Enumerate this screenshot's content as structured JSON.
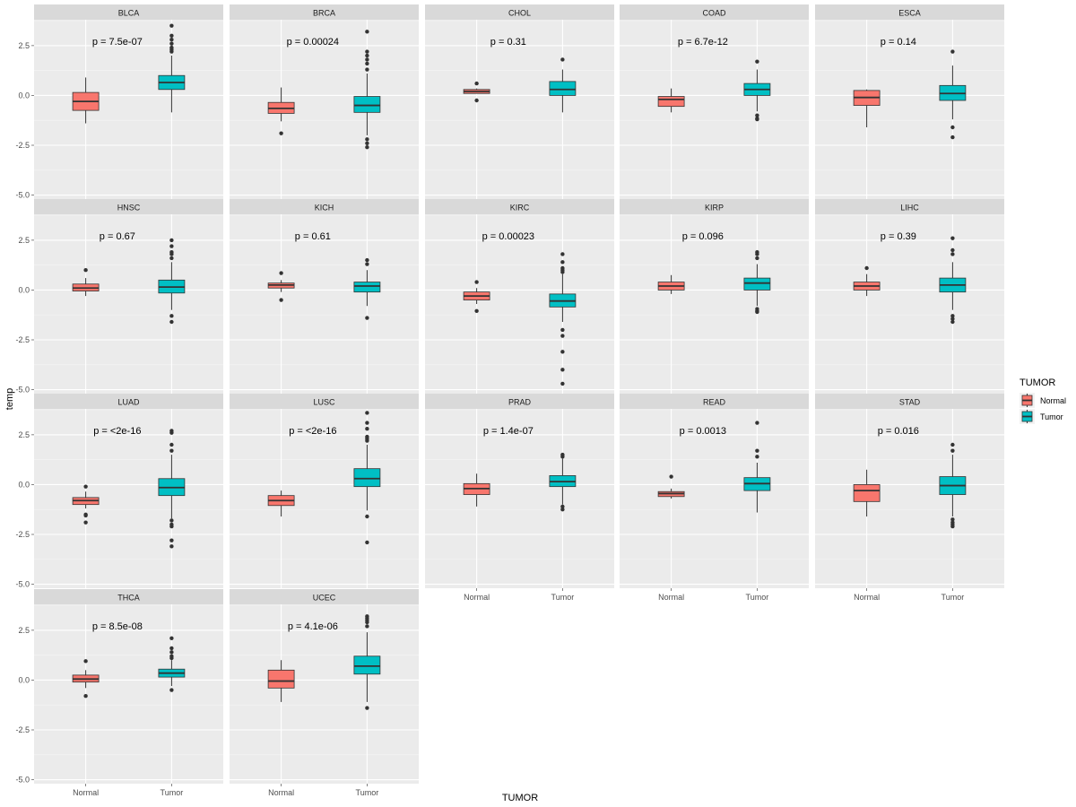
{
  "chart_data": {
    "type": "boxplot-faceted",
    "xlabel": "TUMOR",
    "ylabel": "temp",
    "ylim": [
      -5.2,
      3.8
    ],
    "yticks": [
      -5.0,
      -2.5,
      0.0,
      2.5
    ],
    "ytick_labels": [
      "-5.0",
      "-2.5",
      "0.0",
      "2.5"
    ],
    "categories": [
      "Normal",
      "Tumor"
    ],
    "legend": {
      "title": "TUMOR",
      "position": "right",
      "items": [
        {
          "label": "Normal",
          "color": "#F8766D"
        },
        {
          "label": "Tumor",
          "color": "#00BFC4"
        }
      ]
    },
    "grid": true,
    "facets": [
      {
        "name": "BLCA",
        "pvalue": "p = 7.5e-07",
        "boxes": [
          {
            "group": "Normal",
            "min": -1.4,
            "q1": -0.75,
            "median": -0.3,
            "q3": 0.15,
            "max": 0.9,
            "outliers": []
          },
          {
            "group": "Tumor",
            "min": -0.85,
            "q1": 0.3,
            "median": 0.65,
            "q3": 1.0,
            "max": 2.0,
            "outliers": [
              2.2,
              2.3,
              2.4,
              2.6,
              2.8,
              3.0,
              3.5
            ]
          }
        ]
      },
      {
        "name": "BRCA",
        "pvalue": "p = 0.00024",
        "boxes": [
          {
            "group": "Normal",
            "min": -1.3,
            "q1": -0.9,
            "median": -0.65,
            "q3": -0.35,
            "max": 0.4,
            "outliers": [
              -1.9
            ]
          },
          {
            "group": "Tumor",
            "min": -2.0,
            "q1": -0.85,
            "median": -0.5,
            "q3": -0.05,
            "max": 1.1,
            "outliers": [
              1.3,
              1.6,
              1.8,
              2.0,
              2.2,
              3.2,
              -2.2,
              -2.4,
              -2.6
            ]
          }
        ]
      },
      {
        "name": "CHOL",
        "pvalue": "p = 0.31",
        "boxes": [
          {
            "group": "Normal",
            "min": 0.1,
            "q1": 0.1,
            "median": 0.2,
            "q3": 0.3,
            "max": 0.35,
            "outliers": [
              0.6,
              -0.25
            ]
          },
          {
            "group": "Tumor",
            "min": -0.85,
            "q1": 0.0,
            "median": 0.3,
            "q3": 0.7,
            "max": 1.3,
            "outliers": [
              1.8
            ]
          }
        ]
      },
      {
        "name": "COAD",
        "pvalue": "p = 6.7e-12",
        "boxes": [
          {
            "group": "Normal",
            "min": -0.85,
            "q1": -0.55,
            "median": -0.2,
            "q3": -0.05,
            "max": 0.35,
            "outliers": []
          },
          {
            "group": "Tumor",
            "min": -0.8,
            "q1": 0.0,
            "median": 0.3,
            "q3": 0.6,
            "max": 1.3,
            "outliers": [
              1.7,
              -1.0,
              -1.15,
              -1.2
            ]
          }
        ]
      },
      {
        "name": "ESCA",
        "pvalue": "p = 0.14",
        "boxes": [
          {
            "group": "Normal",
            "min": -1.6,
            "q1": -0.5,
            "median": -0.1,
            "q3": 0.25,
            "max": 0.3,
            "outliers": []
          },
          {
            "group": "Tumor",
            "min": -1.2,
            "q1": -0.25,
            "median": 0.1,
            "q3": 0.5,
            "max": 1.5,
            "outliers": [
              2.2,
              -1.6,
              -2.1
            ]
          }
        ]
      },
      {
        "name": "HNSC",
        "pvalue": "p = 0.67",
        "boxes": [
          {
            "group": "Normal",
            "min": -0.3,
            "q1": -0.05,
            "median": 0.1,
            "q3": 0.3,
            "max": 0.6,
            "outliers": [
              1.0
            ]
          },
          {
            "group": "Tumor",
            "min": -1.0,
            "q1": -0.15,
            "median": 0.15,
            "q3": 0.5,
            "max": 1.4,
            "outliers": [
              1.6,
              1.8,
              1.9,
              2.2,
              2.5,
              -1.3,
              -1.6
            ]
          }
        ]
      },
      {
        "name": "KICH",
        "pvalue": "p = 0.61",
        "boxes": [
          {
            "group": "Normal",
            "min": -0.1,
            "q1": 0.1,
            "median": 0.25,
            "q3": 0.35,
            "max": 0.5,
            "outliers": [
              0.85,
              -0.5
            ]
          },
          {
            "group": "Tumor",
            "min": -0.8,
            "q1": -0.1,
            "median": 0.2,
            "q3": 0.4,
            "max": 1.0,
            "outliers": [
              1.3,
              1.5,
              -1.4
            ]
          }
        ]
      },
      {
        "name": "KIRC",
        "pvalue": "p = 0.00023",
        "boxes": [
          {
            "group": "Normal",
            "min": -0.7,
            "q1": -0.5,
            "median": -0.3,
            "q3": -0.1,
            "max": 0.1,
            "outliers": [
              0.4,
              -1.05
            ]
          },
          {
            "group": "Tumor",
            "min": -1.6,
            "q1": -0.85,
            "median": -0.55,
            "q3": -0.2,
            "max": 0.8,
            "outliers": [
              0.9,
              1.0,
              1.1,
              1.4,
              1.8,
              -2.0,
              -2.3,
              -3.1,
              -4.0,
              -4.7
            ]
          }
        ]
      },
      {
        "name": "KIRP",
        "pvalue": "p = 0.096",
        "boxes": [
          {
            "group": "Normal",
            "min": -0.2,
            "q1": 0.0,
            "median": 0.2,
            "q3": 0.4,
            "max": 0.75,
            "outliers": []
          },
          {
            "group": "Tumor",
            "min": -0.8,
            "q1": 0.0,
            "median": 0.35,
            "q3": 0.6,
            "max": 1.3,
            "outliers": [
              1.6,
              1.8,
              1.9,
              -0.95,
              -1.05,
              -1.1
            ]
          }
        ]
      },
      {
        "name": "LIHC",
        "pvalue": "p = 0.39",
        "boxes": [
          {
            "group": "Normal",
            "min": -0.3,
            "q1": 0.0,
            "median": 0.2,
            "q3": 0.4,
            "max": 0.8,
            "outliers": [
              1.1
            ]
          },
          {
            "group": "Tumor",
            "min": -1.0,
            "q1": -0.1,
            "median": 0.25,
            "q3": 0.6,
            "max": 1.4,
            "outliers": [
              1.8,
              2.0,
              2.6,
              -1.3,
              -1.45,
              -1.6
            ]
          }
        ]
      },
      {
        "name": "LUAD",
        "pvalue": "p = <2e-16",
        "boxes": [
          {
            "group": "Normal",
            "min": -1.2,
            "q1": -1.0,
            "median": -0.8,
            "q3": -0.65,
            "max": -0.35,
            "outliers": [
              -0.1,
              -1.5,
              -1.55,
              -1.9
            ]
          },
          {
            "group": "Tumor",
            "min": -1.7,
            "q1": -0.55,
            "median": -0.15,
            "q3": 0.3,
            "max": 1.5,
            "outliers": [
              1.7,
              2.0,
              2.6,
              2.7,
              -1.8,
              -2.0,
              -2.1,
              -2.8,
              -3.1
            ]
          }
        ]
      },
      {
        "name": "LUSC",
        "pvalue": "p = <2e-16",
        "boxes": [
          {
            "group": "Normal",
            "min": -1.6,
            "q1": -1.05,
            "median": -0.8,
            "q3": -0.55,
            "max": -0.3,
            "outliers": []
          },
          {
            "group": "Tumor",
            "min": -1.3,
            "q1": -0.1,
            "median": 0.3,
            "q3": 0.8,
            "max": 2.0,
            "outliers": [
              2.2,
              2.3,
              2.4,
              2.8,
              3.1,
              3.6,
              -1.6,
              -2.9
            ]
          }
        ]
      },
      {
        "name": "PRAD",
        "pvalue": "p = 1.4e-07",
        "boxes": [
          {
            "group": "Normal",
            "min": -1.1,
            "q1": -0.5,
            "median": -0.2,
            "q3": 0.05,
            "max": 0.55,
            "outliers": []
          },
          {
            "group": "Tumor",
            "min": -1.0,
            "q1": -0.1,
            "median": 0.15,
            "q3": 0.45,
            "max": 1.3,
            "outliers": [
              1.4,
              1.5,
              -1.1,
              -1.25
            ]
          }
        ]
      },
      {
        "name": "READ",
        "pvalue": "p = 0.0013",
        "boxes": [
          {
            "group": "Normal",
            "min": -0.7,
            "q1": -0.6,
            "median": -0.45,
            "q3": -0.35,
            "max": -0.2,
            "outliers": [
              0.4
            ]
          },
          {
            "group": "Tumor",
            "min": -1.4,
            "q1": -0.3,
            "median": 0.05,
            "q3": 0.35,
            "max": 1.1,
            "outliers": [
              1.4,
              1.7,
              3.1
            ]
          }
        ]
      },
      {
        "name": "STAD",
        "pvalue": "p = 0.016",
        "boxes": [
          {
            "group": "Normal",
            "min": -1.6,
            "q1": -0.85,
            "median": -0.3,
            "q3": 0.0,
            "max": 0.75,
            "outliers": []
          },
          {
            "group": "Tumor",
            "min": -1.6,
            "q1": -0.5,
            "median": -0.05,
            "q3": 0.4,
            "max": 1.5,
            "outliers": [
              1.7,
              2.0,
              -1.75,
              -1.9,
              -2.0,
              -2.1
            ]
          }
        ]
      },
      {
        "name": "THCA",
        "pvalue": "p = 8.5e-08",
        "boxes": [
          {
            "group": "Normal",
            "min": -0.4,
            "q1": -0.1,
            "median": 0.05,
            "q3": 0.25,
            "max": 0.5,
            "outliers": [
              0.95,
              -0.8
            ]
          },
          {
            "group": "Tumor",
            "min": -0.3,
            "q1": 0.15,
            "median": 0.35,
            "q3": 0.55,
            "max": 1.0,
            "outliers": [
              1.1,
              1.2,
              1.4,
              1.6,
              2.1,
              -0.5
            ]
          }
        ]
      },
      {
        "name": "UCEC",
        "pvalue": "p = 4.1e-06",
        "boxes": [
          {
            "group": "Normal",
            "min": -1.1,
            "q1": -0.4,
            "median": -0.05,
            "q3": 0.5,
            "max": 1.0,
            "outliers": []
          },
          {
            "group": "Tumor",
            "min": -1.1,
            "q1": 0.3,
            "median": 0.7,
            "q3": 1.2,
            "max": 2.4,
            "outliers": [
              2.7,
              2.9,
              3.0,
              3.1,
              3.2,
              -1.4
            ]
          }
        ]
      }
    ]
  }
}
